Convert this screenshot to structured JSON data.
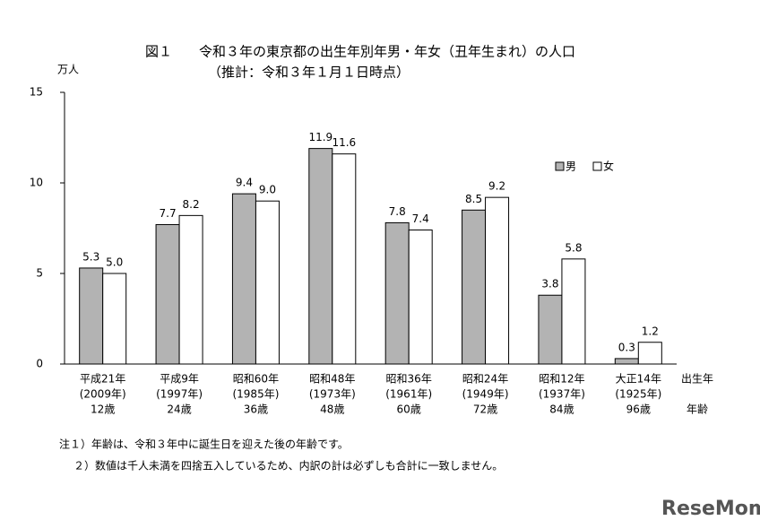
{
  "chart_data": {
    "type": "bar",
    "title": "図１　　令和３年の東京都の出生年別年男・年女（丑年生まれ）の人口",
    "subtitle": "（推計：令和３年１月１日時点）",
    "y_label": "万人",
    "categories": [
      [
        "平成21年",
        "(2009年)",
        "12歳"
      ],
      [
        "平成9年",
        "(1997年)",
        "24歳"
      ],
      [
        "昭和60年",
        "(1985年)",
        "36歳"
      ],
      [
        "昭和48年",
        "(1973年)",
        "48歳"
      ],
      [
        "昭和36年",
        "(1961年)",
        "60歳"
      ],
      [
        "昭和24年",
        "(1949年)",
        "72歳"
      ],
      [
        "昭和12年",
        "(1937年)",
        "84歳"
      ],
      [
        "大正14年",
        "(1925年)",
        "96歳"
      ]
    ],
    "category_row_labels": [
      "出生年",
      "年齢"
    ],
    "series": [
      {
        "name": "男",
        "color": "#b3b3b3",
        "values": [
          5.3,
          7.7,
          9.4,
          11.9,
          7.8,
          8.5,
          3.8,
          0.3
        ],
        "value_labels": [
          "5.3",
          "7.7",
          "9.4",
          "11.9",
          "7.8",
          "8.5",
          "3.8",
          "0.3"
        ]
      },
      {
        "name": "女",
        "color": "#ffffff",
        "values": [
          5.0,
          8.2,
          9.0,
          11.6,
          7.4,
          9.2,
          5.8,
          1.2
        ],
        "value_labels": [
          "5.0",
          "8.2",
          "9.0",
          "11.6",
          "7.4",
          "9.2",
          "5.8",
          "1.2"
        ]
      }
    ],
    "ylim": [
      0,
      15
    ],
    "yticks": [
      0,
      5,
      10,
      15
    ],
    "grid": false,
    "legend": "upper-right",
    "notes": [
      "注１）年齢は、令和３年中に誕生日を迎えた後の年齢です。",
      "２）数値は千人未満を四捨五入しているため、内訳の計は必ずしも合計に一致しません。"
    ],
    "watermark": "ReseMom"
  }
}
